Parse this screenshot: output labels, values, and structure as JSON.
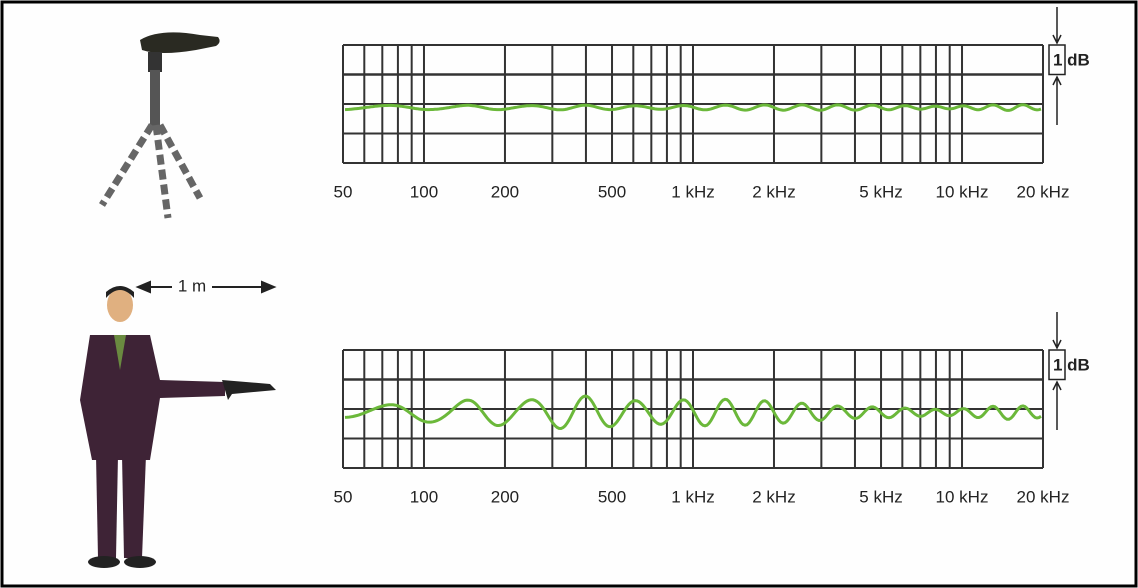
{
  "distance_label": "1 m",
  "panels": [
    {
      "x_labels": [
        "50",
        "100",
        "200",
        "500",
        "1 kHz",
        "2 kHz",
        "5 kHz",
        "10 kHz",
        "20 kHz"
      ],
      "scale_label": "1 dB"
    },
    {
      "x_labels": [
        "50",
        "100",
        "200",
        "500",
        "1 kHz",
        "2 kHz",
        "5 kHz",
        "10 kHz",
        "20 kHz"
      ],
      "scale_label": "1 dB"
    }
  ]
}
